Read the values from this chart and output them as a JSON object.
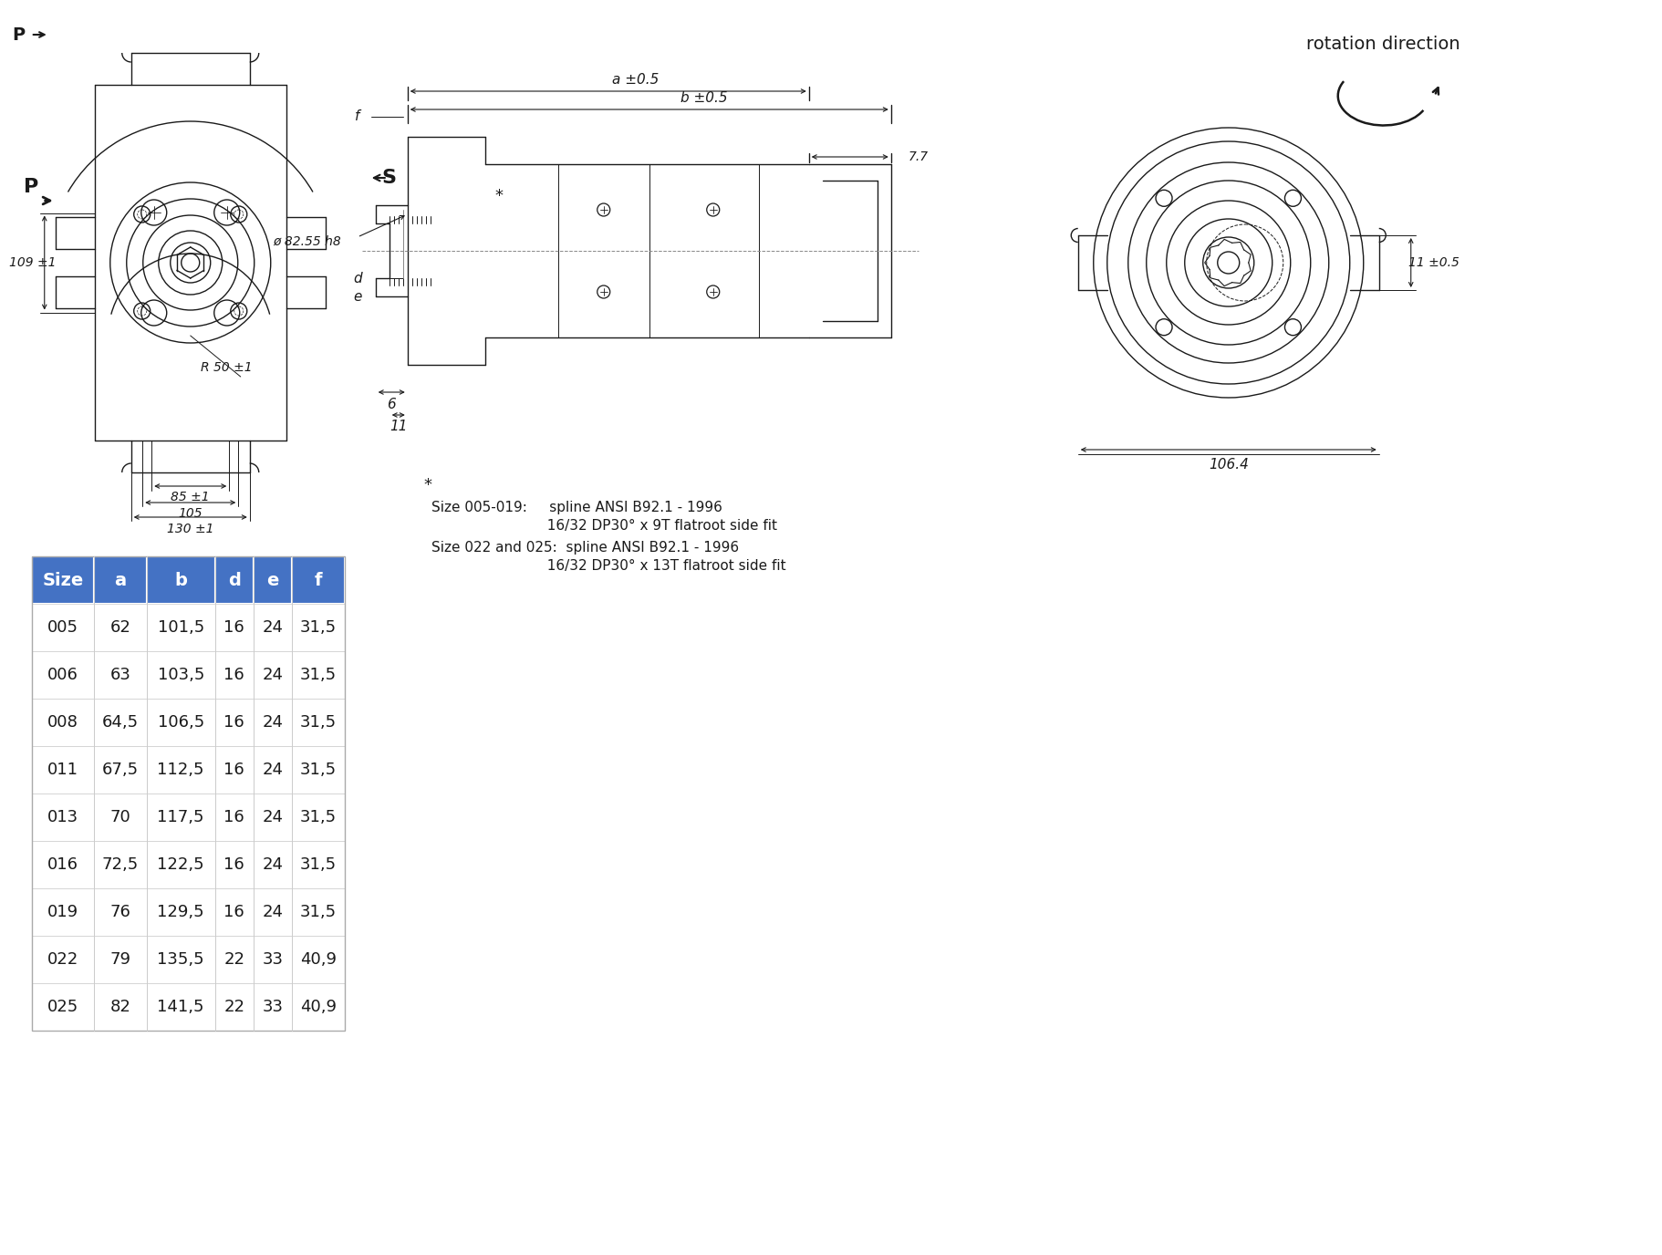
{
  "bg_color": "#ffffff",
  "header_color": "#4472c4",
  "header_text_color": "#ffffff",
  "table_headers": [
    "Size",
    "a",
    "b",
    "d",
    "e",
    "f"
  ],
  "table_data": [
    [
      "005",
      "62",
      "101,5",
      "16",
      "24",
      "31,5"
    ],
    [
      "006",
      "63",
      "103,5",
      "16",
      "24",
      "31,5"
    ],
    [
      "008",
      "64,5",
      "106,5",
      "16",
      "24",
      "31,5"
    ],
    [
      "011",
      "67,5",
      "112,5",
      "16",
      "24",
      "31,5"
    ],
    [
      "013",
      "70",
      "117,5",
      "16",
      "24",
      "31,5"
    ],
    [
      "016",
      "72,5",
      "122,5",
      "16",
      "24",
      "31,5"
    ],
    [
      "019",
      "76",
      "129,5",
      "16",
      "24",
      "31,5"
    ],
    [
      "022",
      "79",
      "135,5",
      "22",
      "33",
      "40,9"
    ],
    [
      "025",
      "82",
      "141,5",
      "22",
      "33",
      "40,9"
    ]
  ],
  "rotation_text": "rotation direction",
  "dim_P": "P",
  "dim_S": "S",
  "dim_109": "109 ±1",
  "dim_85": "85 ±1",
  "dim_105": "105",
  "dim_130": "130 ±1",
  "dim_R50": "R 50 ±1",
  "dim_b": "b ±0.5",
  "dim_a": "a ±0.5",
  "dim_77": "7.7",
  "dim_phi82": "ø 82.55 h8",
  "dim_6": "6",
  "dim_11": "11",
  "dim_d": "d",
  "dim_e": "e",
  "dim_f": "f",
  "dim_106": "106.4",
  "dim_11b": "11 ±0.5",
  "note_star": "*",
  "note_l1": "Size 005-019:     spline ANSI B92.1 - 1996",
  "note_l2": "                          16/32 DP30° x 9T flatroot side fit",
  "note_l3": "Size 022 and 025:  spline ANSI B92.1 - 1996",
  "note_l4": "                          16/32 DP30° x 13T flatroot side fit",
  "lc": "#1a1a1a",
  "lw": 1.0
}
